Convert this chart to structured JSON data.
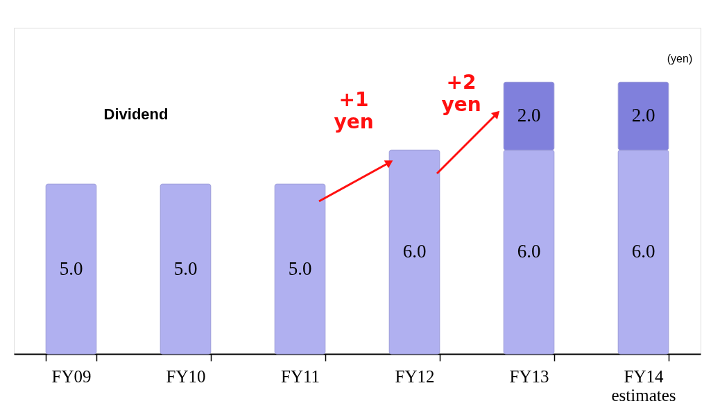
{
  "chart_data": {
    "type": "bar",
    "stacked": true,
    "categories": [
      "FY09",
      "FY10",
      "FY11",
      "FY12",
      "FY13",
      "FY14 estimates"
    ],
    "series": [
      {
        "color": "#b0b0f0",
        "values": [
          5.0,
          5.0,
          5.0,
          6.0,
          6.0,
          6.0
        ],
        "value_labels": [
          "5.0",
          "5.0",
          "5.0",
          "6.0",
          "6.0",
          "6.0"
        ]
      },
      {
        "color": "#8080dc",
        "values": [
          null,
          null,
          null,
          null,
          2.0,
          2.0
        ],
        "value_labels": [
          null,
          null,
          null,
          null,
          "2.0",
          "2.0"
        ]
      }
    ],
    "annotations": [
      "(yen)",
      "Dividend",
      "+1 yen",
      "+2 yen"
    ]
  }
}
